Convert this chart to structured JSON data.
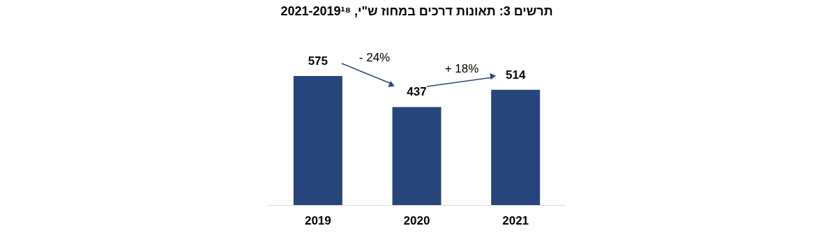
{
  "chart_data": {
    "type": "bar",
    "title": "תרשים 3: תאונות דרכים במחוז ש\"י, 2021-2019¹⁸",
    "categories": [
      "2019",
      "2020",
      "2021"
    ],
    "values": [
      575,
      437,
      514
    ],
    "color": "#27457a",
    "data_labels": true,
    "annotations": [
      "- 24%",
      "+ 18%"
    ]
  }
}
